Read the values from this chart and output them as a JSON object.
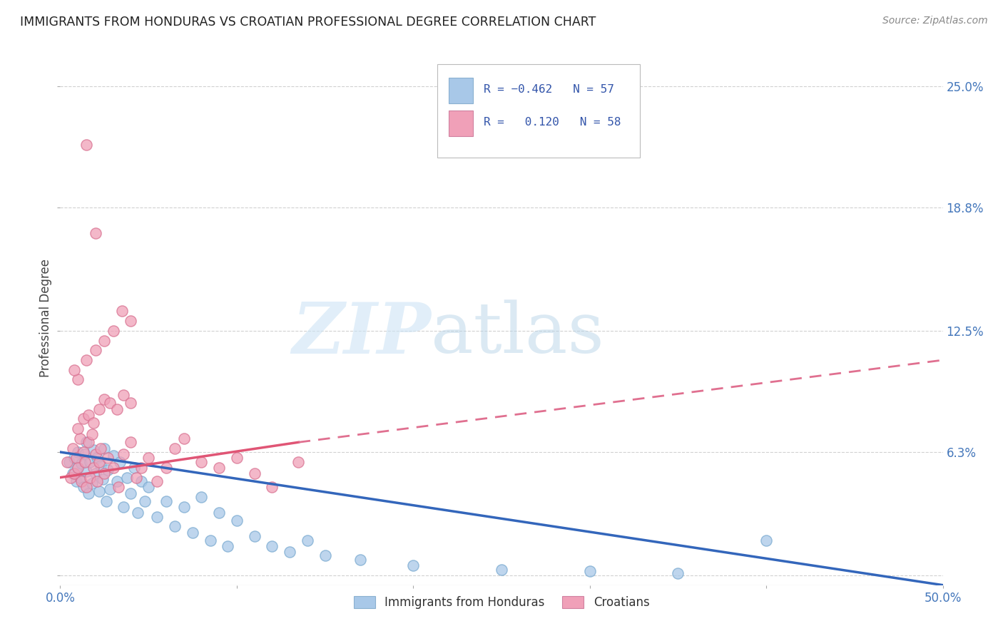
{
  "title": "IMMIGRANTS FROM HONDURAS VS CROATIAN PROFESSIONAL DEGREE CORRELATION CHART",
  "source": "Source: ZipAtlas.com",
  "ylabel": "Professional Degree",
  "y_ticks": [
    0.0,
    0.063,
    0.125,
    0.188,
    0.25
  ],
  "y_tick_labels": [
    "",
    "6.3%",
    "12.5%",
    "18.8%",
    "25.0%"
  ],
  "x_range": [
    0.0,
    0.5
  ],
  "y_range": [
    -0.005,
    0.268
  ],
  "color_blue": "#a8c8e8",
  "color_pink": "#f0a0b8",
  "legend_label_1": "Immigrants from Honduras",
  "legend_label_2": "Croatians",
  "blue_scatter_x": [
    0.005,
    0.007,
    0.008,
    0.009,
    0.01,
    0.01,
    0.011,
    0.012,
    0.013,
    0.014,
    0.015,
    0.015,
    0.016,
    0.017,
    0.018,
    0.019,
    0.02,
    0.021,
    0.022,
    0.023,
    0.024,
    0.025,
    0.026,
    0.027,
    0.028,
    0.03,
    0.032,
    0.034,
    0.036,
    0.038,
    0.04,
    0.042,
    0.044,
    0.046,
    0.048,
    0.05,
    0.055,
    0.06,
    0.065,
    0.07,
    0.075,
    0.08,
    0.085,
    0.09,
    0.095,
    0.1,
    0.11,
    0.12,
    0.13,
    0.14,
    0.15,
    0.17,
    0.2,
    0.25,
    0.3,
    0.35,
    0.4
  ],
  "blue_scatter_y": [
    0.058,
    0.052,
    0.06,
    0.048,
    0.055,
    0.063,
    0.05,
    0.057,
    0.045,
    0.062,
    0.053,
    0.068,
    0.042,
    0.058,
    0.047,
    0.064,
    0.052,
    0.06,
    0.043,
    0.056,
    0.049,
    0.065,
    0.038,
    0.054,
    0.044,
    0.061,
    0.048,
    0.058,
    0.035,
    0.05,
    0.042,
    0.055,
    0.032,
    0.048,
    0.038,
    0.045,
    0.03,
    0.038,
    0.025,
    0.035,
    0.022,
    0.04,
    0.018,
    0.032,
    0.015,
    0.028,
    0.02,
    0.015,
    0.012,
    0.018,
    0.01,
    0.008,
    0.005,
    0.003,
    0.002,
    0.001,
    0.018
  ],
  "pink_scatter_x": [
    0.004,
    0.006,
    0.007,
    0.008,
    0.009,
    0.01,
    0.011,
    0.012,
    0.013,
    0.014,
    0.015,
    0.016,
    0.017,
    0.018,
    0.019,
    0.02,
    0.021,
    0.022,
    0.023,
    0.025,
    0.027,
    0.03,
    0.033,
    0.036,
    0.04,
    0.043,
    0.046,
    0.05,
    0.055,
    0.06,
    0.065,
    0.07,
    0.08,
    0.09,
    0.1,
    0.11,
    0.12,
    0.135,
    0.01,
    0.013,
    0.016,
    0.019,
    0.022,
    0.025,
    0.028,
    0.032,
    0.036,
    0.04,
    0.01,
    0.008,
    0.015,
    0.02,
    0.03,
    0.04,
    0.025,
    0.035,
    0.02,
    0.015
  ],
  "pink_scatter_y": [
    0.058,
    0.05,
    0.065,
    0.052,
    0.06,
    0.055,
    0.07,
    0.048,
    0.063,
    0.058,
    0.045,
    0.068,
    0.05,
    0.072,
    0.055,
    0.062,
    0.048,
    0.058,
    0.065,
    0.052,
    0.06,
    0.055,
    0.045,
    0.062,
    0.068,
    0.05,
    0.055,
    0.06,
    0.048,
    0.055,
    0.065,
    0.07,
    0.058,
    0.055,
    0.06,
    0.052,
    0.045,
    0.058,
    0.075,
    0.08,
    0.082,
    0.078,
    0.085,
    0.09,
    0.088,
    0.085,
    0.092,
    0.088,
    0.1,
    0.105,
    0.11,
    0.115,
    0.125,
    0.13,
    0.12,
    0.135,
    0.175,
    0.22
  ],
  "trendline_blue_x0": 0.0,
  "trendline_blue_y0": 0.063,
  "trendline_blue_x1": 0.5,
  "trendline_blue_y1": -0.005,
  "trendline_pink_solid_x0": 0.0,
  "trendline_pink_solid_y0": 0.05,
  "trendline_pink_solid_x1": 0.135,
  "trendline_pink_solid_y1": 0.068,
  "trendline_pink_dashed_x0": 0.135,
  "trendline_pink_dashed_y0": 0.068,
  "trendline_pink_dashed_x1": 0.5,
  "trendline_pink_dashed_y1": 0.11
}
